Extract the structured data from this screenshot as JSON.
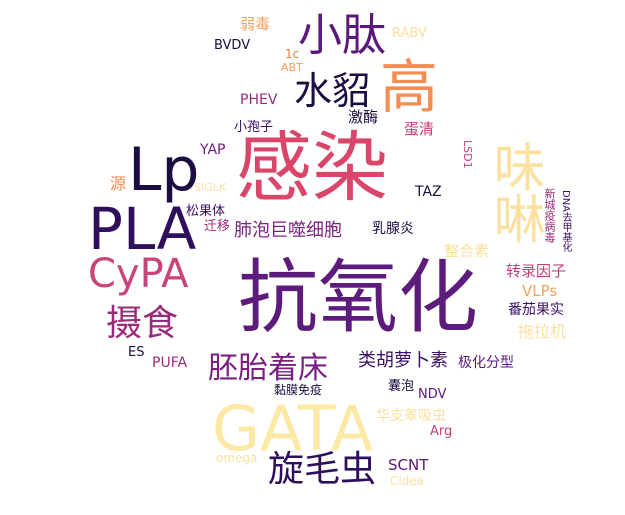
{
  "palette": {
    "dark": "#1b0c41",
    "purple": "#6a1a78",
    "magenta": "#9b2a7a",
    "pink": "#d1416b",
    "orange": "#f07848",
    "peach": "#f5a25c",
    "cream": "#fbe3a0"
  },
  "words": [
    {
      "id": "kanghua",
      "text": "抗氧化",
      "color": "#5d1c7c"
    },
    {
      "id": "ganran",
      "text": "感染",
      "color": "#d9466a"
    },
    {
      "id": "gata",
      "text": "GATA",
      "color": "#fde9a6"
    },
    {
      "id": "lp",
      "text": "Lp",
      "color": "#1b0c41"
    },
    {
      "id": "pla",
      "text": "PLA",
      "color": "#2f0f5c"
    },
    {
      "id": "cypa",
      "text": "CyPA",
      "color": "#c8447a"
    },
    {
      "id": "gao",
      "text": "高",
      "color": "#f58c52"
    },
    {
      "id": "xiaotai",
      "text": "小肽",
      "color": "#5a187a"
    },
    {
      "id": "shuidiao",
      "text": "水貂",
      "color": "#1b0c41"
    },
    {
      "id": "weijing",
      "text": "味啉",
      "color": "#fbe0a0"
    },
    {
      "id": "sheshi",
      "text": "摄食",
      "color": "#9b2a7a"
    },
    {
      "id": "xuanmaochong",
      "text": "旋毛虫",
      "color": "#2f0f5c"
    },
    {
      "id": "peitai",
      "text": "胚胎着床",
      "color": "#7a2080"
    },
    {
      "id": "feipao",
      "text": "肺泡巨噬细胞",
      "color": "#7b2382"
    },
    {
      "id": "leihuluobu",
      "text": "类胡萝卜素",
      "color": "#3c1068"
    },
    {
      "id": "zhuanlu",
      "text": "转录因子",
      "color": "#c0407a"
    },
    {
      "id": "vlps",
      "text": "VLPs",
      "color": "#f5a25c"
    },
    {
      "id": "fanqie",
      "text": "番茄果实",
      "color": "#3c1068"
    },
    {
      "id": "tuolaji",
      "text": "拖拉机",
      "color": "#fbe0a0"
    },
    {
      "id": "jihua",
      "text": "极化分型",
      "color": "#5a187a"
    },
    {
      "id": "zhengheisu",
      "text": "整合素",
      "color": "#fbe0a0"
    },
    {
      "id": "ruxianyan",
      "text": "乳腺炎",
      "color": "#1b0c41"
    },
    {
      "id": "songguoti",
      "text": "松果体",
      "color": "#3c1068"
    },
    {
      "id": "qianyi",
      "text": "迁移",
      "color": "#9b2a7a"
    },
    {
      "id": "xiaobaozi",
      "text": "小孢子",
      "color": "#3c1068"
    },
    {
      "id": "jimei",
      "text": "激酶",
      "color": "#1b0c41"
    },
    {
      "id": "danqing",
      "text": "蛋清",
      "color": "#c0407a"
    },
    {
      "id": "ruodu",
      "text": "弱毒",
      "color": "#f5a25c"
    },
    {
      "id": "bvdv",
      "text": "BVDV",
      "color": "#1b0c41"
    },
    {
      "id": "rabv",
      "text": "RABV",
      "color": "#fbe0a0"
    },
    {
      "id": "1c",
      "text": "1c",
      "color": "#f07848"
    },
    {
      "id": "abt",
      "text": "ABT",
      "color": "#f5a25c"
    },
    {
      "id": "phev",
      "text": "PHEV",
      "color": "#9b2a7a"
    },
    {
      "id": "yap",
      "text": "YAP",
      "color": "#6a1a78"
    },
    {
      "id": "yuan",
      "text": "源",
      "color": "#f58c52"
    },
    {
      "id": "siglk",
      "text": "SIGLK",
      "color": "#fbe0a0"
    },
    {
      "id": "taz",
      "text": "TAZ",
      "color": "#1b0c41"
    },
    {
      "id": "lsd1",
      "text": "LSD1",
      "color": "#c0407a"
    },
    {
      "id": "xinguan",
      "text": "新城疫病毒",
      "color": "#9b2a7a"
    },
    {
      "id": "dna",
      "text": "DNA去甲基化",
      "color": "#3c1068"
    },
    {
      "id": "es",
      "text": "ES",
      "color": "#1b0c41"
    },
    {
      "id": "pufa",
      "text": "PUFA",
      "color": "#9b2a7a"
    },
    {
      "id": "nianmo",
      "text": "黏膜免疫",
      "color": "#1b0c41"
    },
    {
      "id": "nangpao",
      "text": "囊泡",
      "color": "#1b0c41"
    },
    {
      "id": "ndv",
      "text": "NDV",
      "color": "#5a187a"
    },
    {
      "id": "huazhi",
      "text": "华支睾吸虫",
      "color": "#fbe0a0"
    },
    {
      "id": "arg",
      "text": "Arg",
      "color": "#c0407a"
    },
    {
      "id": "omega",
      "text": "omega",
      "color": "#fbe0a0"
    },
    {
      "id": "scnt",
      "text": "SCNT",
      "color": "#5a187a"
    },
    {
      "id": "cidea",
      "text": "Cidea",
      "color": "#fbe0a0"
    }
  ]
}
